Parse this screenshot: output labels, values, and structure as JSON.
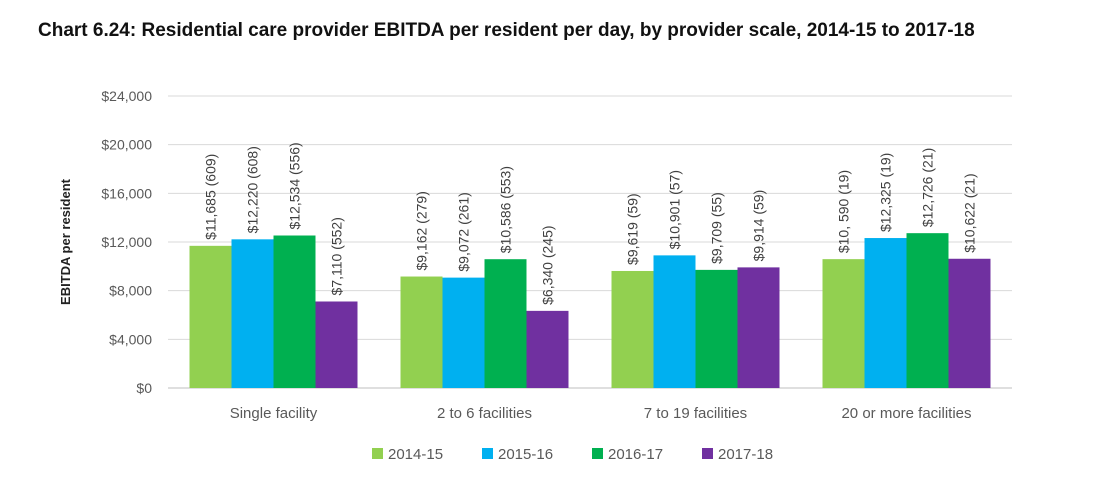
{
  "chart_data": {
    "type": "bar",
    "title": "Chart 6.24: Residential care provider EBITDA per resident per day, by provider scale, 2014-15 to 2017-18",
    "xlabel": "",
    "ylabel": "EBITDA per resident",
    "ylim": [
      0,
      24000
    ],
    "yticks": [
      0,
      4000,
      8000,
      12000,
      16000,
      20000,
      24000
    ],
    "ytick_labels": [
      "$0",
      "$4,000",
      "$8,000",
      "$12,000",
      "$16,000",
      "$20,000",
      "$24,000"
    ],
    "grid": true,
    "legend_position": "bottom",
    "categories": [
      "Single facility",
      "2 to 6 facilities",
      "7 to 19 facilities",
      "20 or more facilities"
    ],
    "series": [
      {
        "name": "2014-15",
        "color": "#92d050",
        "values": [
          11685,
          9162,
          9619,
          10590
        ],
        "labels": [
          "$11,685 (609)",
          "$9,162 (279)",
          "$9,619 (59)",
          "$10, 590 (19)"
        ]
      },
      {
        "name": "2015-16",
        "color": "#00b0f0",
        "values": [
          12220,
          9072,
          10901,
          12325
        ],
        "labels": [
          "$12,220 (608)",
          "$9,072 (261)",
          "$10,901 (57)",
          "$12,325 (19)"
        ]
      },
      {
        "name": "2016-17",
        "color": "#00b050",
        "values": [
          12534,
          10586,
          9709,
          12726
        ],
        "labels": [
          "$12,534 (556)",
          "$10,586 (553)",
          "$9,709 (55)",
          "$12,726 (21)"
        ]
      },
      {
        "name": "2017-18",
        "color": "#7030a0",
        "values": [
          7110,
          6340,
          9914,
          10622
        ],
        "labels": [
          "$7,110 (552)",
          "$6,340 (245)",
          "$9,914 (59)",
          "$10,622 (21)"
        ]
      }
    ]
  }
}
